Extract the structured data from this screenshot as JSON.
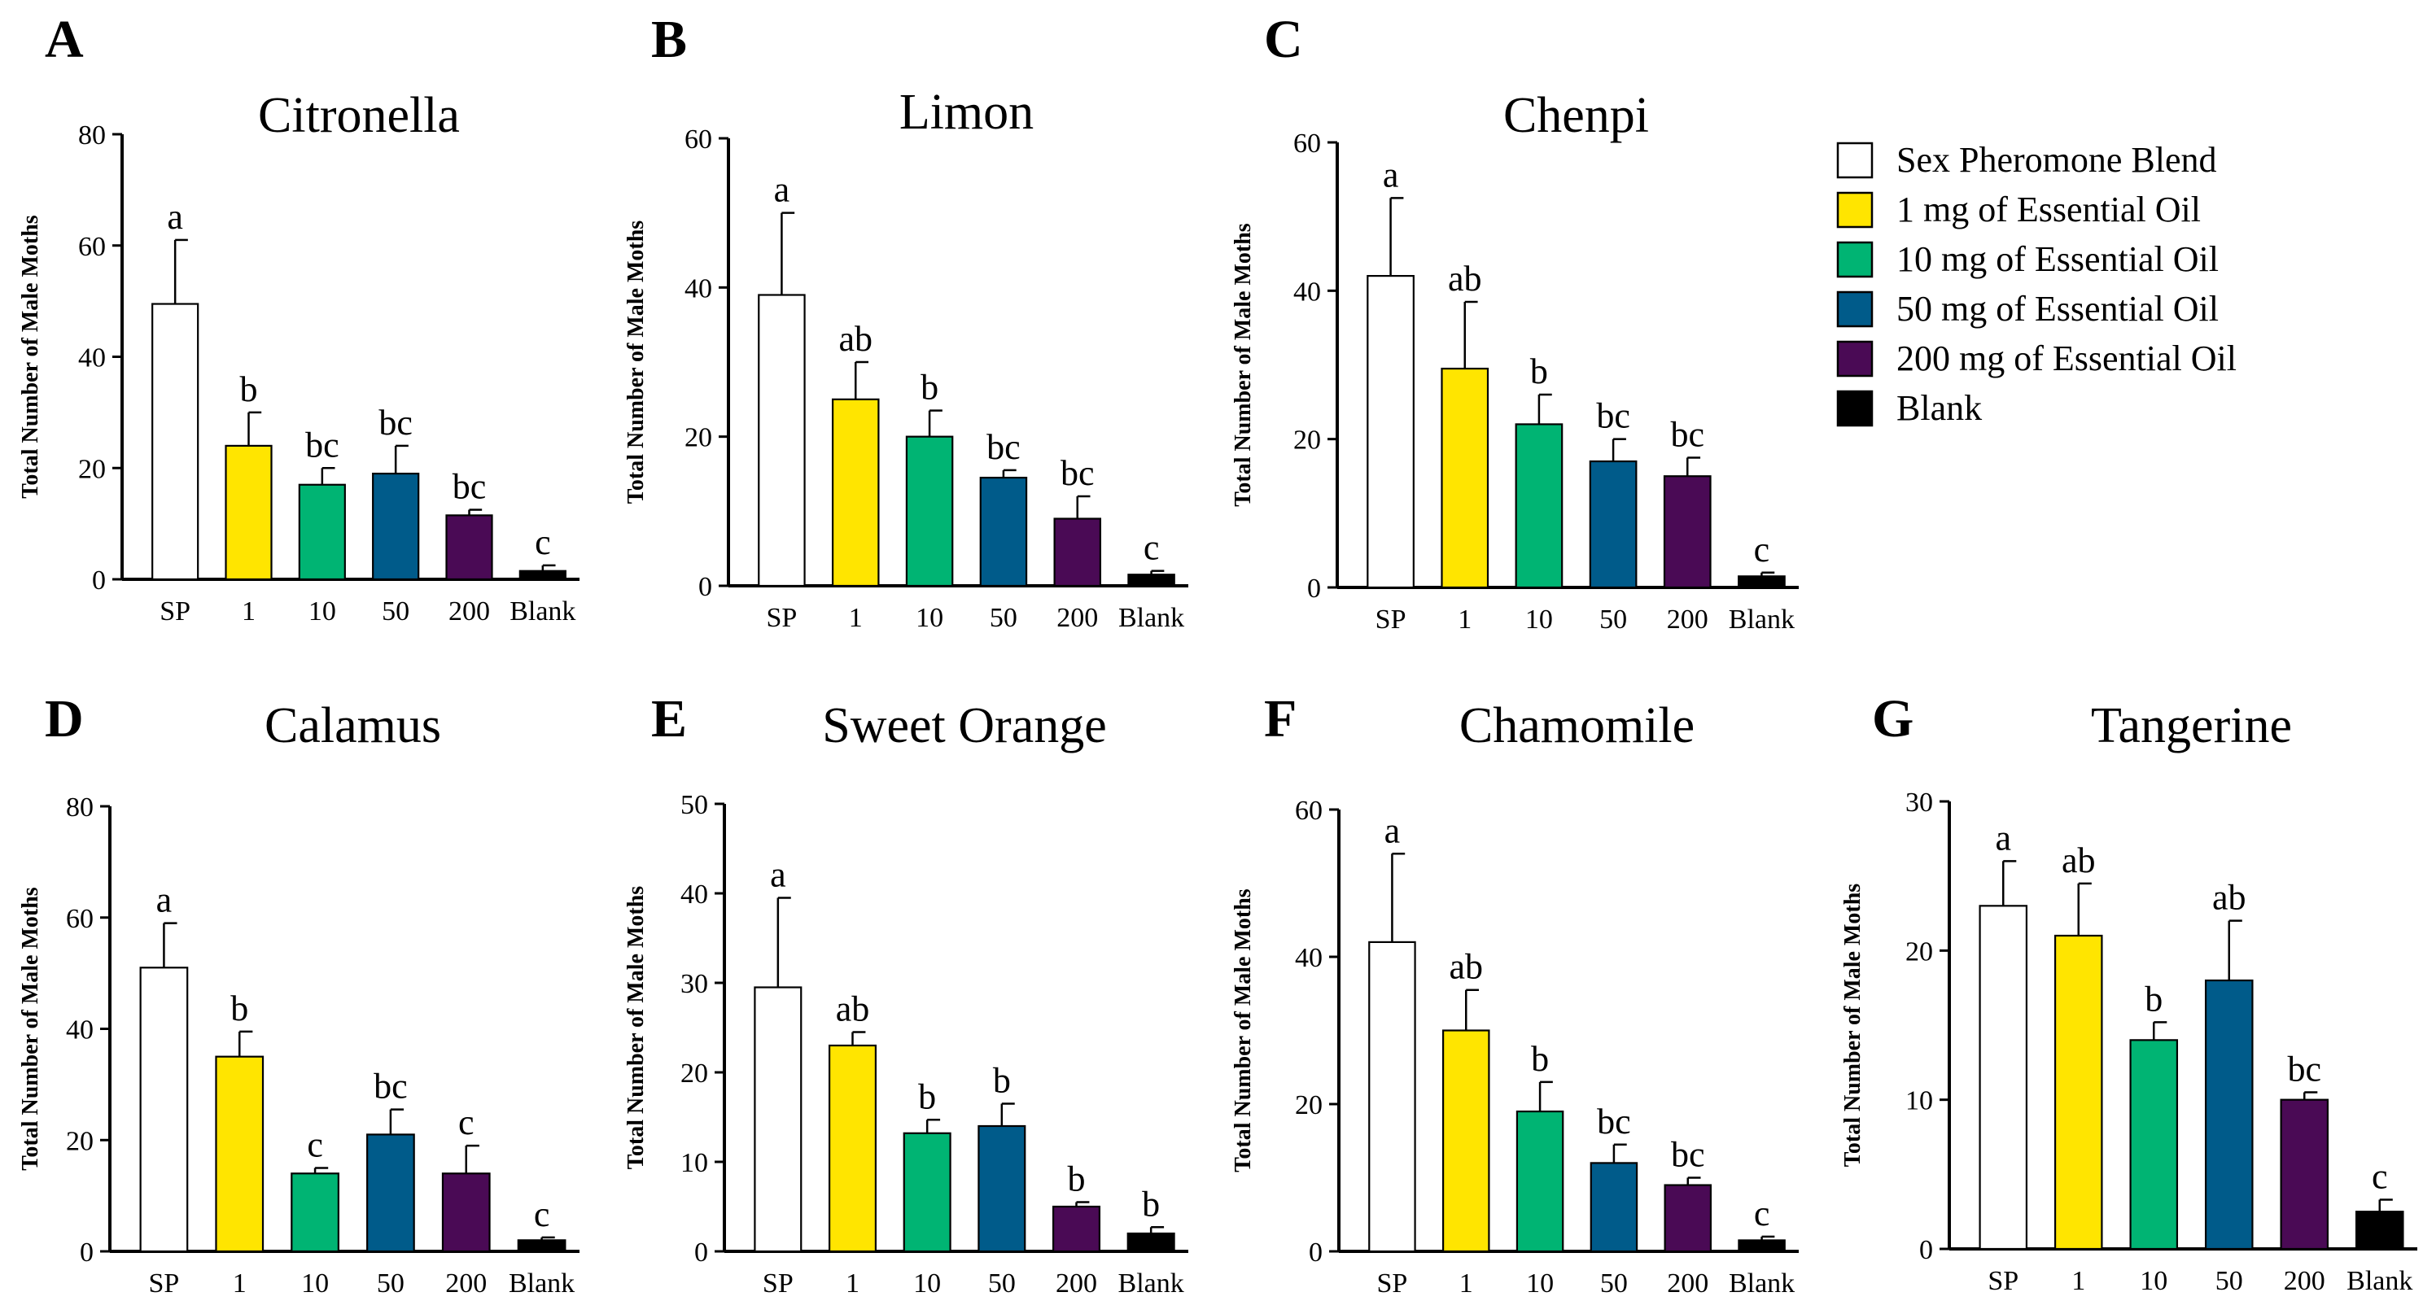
{
  "legend": {
    "items": [
      {
        "label": "Sex Pheromone Blend",
        "color": "#ffffff"
      },
      {
        "label": "1 mg of Essential Oil",
        "color": "#ffe500"
      },
      {
        "label": "10 mg of Essential Oil",
        "color": "#00b473"
      },
      {
        "label": "50 mg of Essential Oil",
        "color": "#005b8a"
      },
      {
        "label": "200 mg of Essential Oil",
        "color": "#4a0a55"
      },
      {
        "label": "Blank",
        "color": "#000000"
      }
    ]
  },
  "chart_data": [
    {
      "panel": "A",
      "type": "bar",
      "title": "Citronella",
      "ylabel": "Total Number of Male Moths",
      "categories": [
        "SP",
        "1",
        "10",
        "50",
        "200",
        "Blank"
      ],
      "values": [
        49.5,
        24,
        17,
        19,
        11.5,
        1.5
      ],
      "errors": [
        11.5,
        6,
        3,
        5,
        1,
        1
      ],
      "letters": [
        "a",
        "b",
        "bc",
        "bc",
        "bc",
        "c"
      ],
      "ylim": [
        0,
        80
      ],
      "yticks": [
        "0",
        "20",
        "40",
        "60",
        "80"
      ]
    },
    {
      "panel": "B",
      "type": "bar",
      "title": "Limon",
      "ylabel": "Total Number of Male Moths",
      "categories": [
        "SP",
        "1",
        "10",
        "50",
        "200",
        "Blank"
      ],
      "values": [
        39,
        25,
        20,
        14.5,
        9,
        1.5
      ],
      "errors": [
        11,
        5,
        3.5,
        1,
        3,
        0.5
      ],
      "letters": [
        "a",
        "ab",
        "b",
        "bc",
        "bc",
        "c"
      ],
      "ylim": [
        0,
        60
      ],
      "yticks": [
        "0",
        "20",
        "40",
        "60"
      ]
    },
    {
      "panel": "C",
      "type": "bar",
      "title": "Chenpi",
      "ylabel": "Total Number of Male Moths",
      "categories": [
        "SP",
        "1",
        "10",
        "50",
        "200",
        "Blank"
      ],
      "values": [
        42,
        29.5,
        22,
        17,
        15,
        1.5
      ],
      "errors": [
        10.5,
        9,
        4,
        3,
        2.5,
        0.5
      ],
      "letters": [
        "a",
        "ab",
        "b",
        "bc",
        "bc",
        "c"
      ],
      "ylim": [
        0,
        60
      ],
      "yticks": [
        "0",
        "20",
        "40",
        "60"
      ]
    },
    {
      "panel": "D",
      "type": "bar",
      "title": "Calamus",
      "ylabel": "Total Number of Male Moths",
      "categories": [
        "SP",
        "1",
        "10",
        "50",
        "200",
        "Blank"
      ],
      "values": [
        51,
        35,
        14,
        21,
        14,
        2
      ],
      "errors": [
        8,
        4.5,
        1,
        4.5,
        5,
        0.5
      ],
      "letters": [
        "a",
        "b",
        "c",
        "bc",
        "c",
        "c"
      ],
      "ylim": [
        0,
        80
      ],
      "yticks": [
        "0",
        "20",
        "40",
        "60",
        "80"
      ]
    },
    {
      "panel": "E",
      "type": "bar",
      "title": "Sweet Orange",
      "ylabel": "Total Number of Male Moths",
      "categories": [
        "SP",
        "1",
        "10",
        "50",
        "200",
        "Blank"
      ],
      "values": [
        29.5,
        23,
        13.2,
        14,
        5,
        2
      ],
      "errors": [
        10,
        1.5,
        1.5,
        2.5,
        0.5,
        0.7
      ],
      "letters": [
        "a",
        "ab",
        "b",
        "b",
        "b",
        "b"
      ],
      "ylim": [
        0,
        50
      ],
      "yticks": [
        "0",
        "10",
        "20",
        "30",
        "40",
        "50"
      ]
    },
    {
      "panel": "F",
      "type": "bar",
      "title": "Chamomile",
      "ylabel": "Total Number of Male Moths",
      "categories": [
        "SP",
        "1",
        "10",
        "50",
        "200",
        "Blank"
      ],
      "values": [
        42,
        30,
        19,
        12,
        9,
        1.5
      ],
      "errors": [
        12,
        5.5,
        4,
        2.5,
        1,
        0.5
      ],
      "letters": [
        "a",
        "ab",
        "b",
        "bc",
        "bc",
        "c"
      ],
      "ylim": [
        0,
        60
      ],
      "yticks": [
        "0",
        "20",
        "40",
        "60"
      ]
    },
    {
      "panel": "G",
      "type": "bar",
      "title": "Tangerine",
      "ylabel": "Total Number of Male Moths",
      "categories": [
        "SP",
        "1",
        "10",
        "50",
        "200",
        "Blank"
      ],
      "values": [
        23,
        21,
        14,
        18,
        10,
        2.5
      ],
      "errors": [
        3,
        3.5,
        1.2,
        4,
        0.5,
        0.8
      ],
      "letters": [
        "a",
        "ab",
        "b",
        "ab",
        "bc",
        "c"
      ],
      "ylim": [
        0,
        30
      ],
      "yticks": [
        "0",
        "10",
        "20",
        "30"
      ]
    }
  ]
}
